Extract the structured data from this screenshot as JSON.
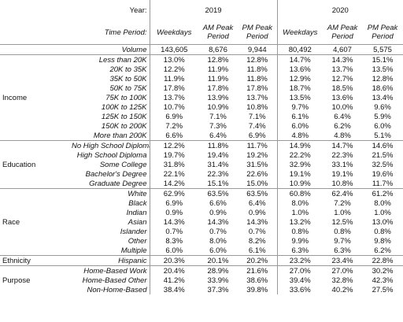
{
  "header": {
    "year_label": "Year:",
    "years": [
      "2019",
      "2020"
    ],
    "period_label": "Time Period:",
    "periods": [
      "Weekdays",
      "AM Peak Period",
      "PM Peak Period",
      "Weekdays",
      "AM Peak Period",
      "PM Peak Period"
    ]
  },
  "volume": {
    "label": "Volume",
    "values": [
      "143,605",
      "8,676",
      "9,944",
      "80,492",
      "4,607",
      "5,575"
    ]
  },
  "groups": [
    {
      "label": "Income",
      "rows": [
        {
          "label": "Less than 20K",
          "values": [
            "13.0%",
            "12.8%",
            "12.8%",
            "14.7%",
            "14.3%",
            "15.1%"
          ]
        },
        {
          "label": "20K to 35K",
          "values": [
            "12.2%",
            "11.9%",
            "11.8%",
            "13.6%",
            "13.7%",
            "13.5%"
          ]
        },
        {
          "label": "35K to 50K",
          "values": [
            "11.9%",
            "11.9%",
            "11.8%",
            "12.9%",
            "12.7%",
            "12.8%"
          ]
        },
        {
          "label": "50K to 75K",
          "values": [
            "17.8%",
            "17.8%",
            "17.8%",
            "18.7%",
            "18.5%",
            "18.6%"
          ]
        },
        {
          "label": "75K to 100K",
          "values": [
            "13.7%",
            "13.9%",
            "13.7%",
            "13.5%",
            "13.6%",
            "13.4%"
          ]
        },
        {
          "label": "100K to 125K",
          "values": [
            "10.7%",
            "10.9%",
            "10.8%",
            "9.7%",
            "10.0%",
            "9.6%"
          ]
        },
        {
          "label": "125K to 150K",
          "values": [
            "6.9%",
            "7.1%",
            "7.1%",
            "6.1%",
            "6.4%",
            "5.9%"
          ]
        },
        {
          "label": "150K to 200K",
          "values": [
            "7.2%",
            "7.3%",
            "7.4%",
            "6.0%",
            "6.2%",
            "6.0%"
          ]
        },
        {
          "label": "More than 200K",
          "values": [
            "6.6%",
            "6.4%",
            "6.9%",
            "4.8%",
            "4.8%",
            "5.1%"
          ]
        }
      ]
    },
    {
      "label": "Education",
      "rows": [
        {
          "label": "No High School Diploma",
          "values": [
            "12.2%",
            "11.8%",
            "11.7%",
            "14.9%",
            "14.7%",
            "14.6%"
          ]
        },
        {
          "label": "High School Diploma",
          "values": [
            "19.7%",
            "19.4%",
            "19.2%",
            "22.2%",
            "22.3%",
            "21.5%"
          ]
        },
        {
          "label": "Some College",
          "values": [
            "31.8%",
            "31.4%",
            "31.5%",
            "32.9%",
            "33.1%",
            "32.5%"
          ]
        },
        {
          "label": "Bachelor's Degree",
          "values": [
            "22.1%",
            "22.3%",
            "22.6%",
            "19.1%",
            "19.1%",
            "19.6%"
          ]
        },
        {
          "label": "Graduate Degree",
          "values": [
            "14.2%",
            "15.1%",
            "15.0%",
            "10.9%",
            "10.8%",
            "11.7%"
          ]
        }
      ]
    },
    {
      "label": "Race",
      "rows": [
        {
          "label": "White",
          "values": [
            "62.9%",
            "63.5%",
            "63.5%",
            "60.8%",
            "62.4%",
            "61.2%"
          ]
        },
        {
          "label": "Black",
          "values": [
            "6.9%",
            "6.6%",
            "6.4%",
            "8.0%",
            "7.2%",
            "8.0%"
          ]
        },
        {
          "label": "Indian",
          "values": [
            "0.9%",
            "0.9%",
            "0.9%",
            "1.0%",
            "1.0%",
            "1.0%"
          ]
        },
        {
          "label": "Asian",
          "values": [
            "14.3%",
            "14.3%",
            "14.3%",
            "13.2%",
            "12.5%",
            "13.0%"
          ]
        },
        {
          "label": "Islander",
          "values": [
            "0.7%",
            "0.7%",
            "0.7%",
            "0.8%",
            "0.8%",
            "0.8%"
          ]
        },
        {
          "label": "Other",
          "values": [
            "8.3%",
            "8.0%",
            "8.2%",
            "9.9%",
            "9.7%",
            "9.8%"
          ]
        },
        {
          "label": "Multiple",
          "values": [
            "6.0%",
            "6.0%",
            "6.1%",
            "6.3%",
            "6.3%",
            "6.2%"
          ]
        }
      ]
    },
    {
      "label": "Ethnicity",
      "rows": [
        {
          "label": "Hispanic",
          "values": [
            "20.3%",
            "20.1%",
            "20.2%",
            "23.2%",
            "23.4%",
            "22.8%"
          ]
        }
      ]
    },
    {
      "label": "Purpose",
      "rows": [
        {
          "label": "Home-Based Work",
          "values": [
            "20.4%",
            "28.9%",
            "21.6%",
            "27.0%",
            "27.0%",
            "30.2%"
          ]
        },
        {
          "label": "Home-Based Other",
          "values": [
            "41.2%",
            "33.9%",
            "38.6%",
            "39.4%",
            "32.8%",
            "42.3%"
          ]
        },
        {
          "label": "Non-Home-Based",
          "values": [
            "38.4%",
            "37.3%",
            "39.8%",
            "33.6%",
            "40.2%",
            "27.5%"
          ]
        }
      ]
    }
  ]
}
